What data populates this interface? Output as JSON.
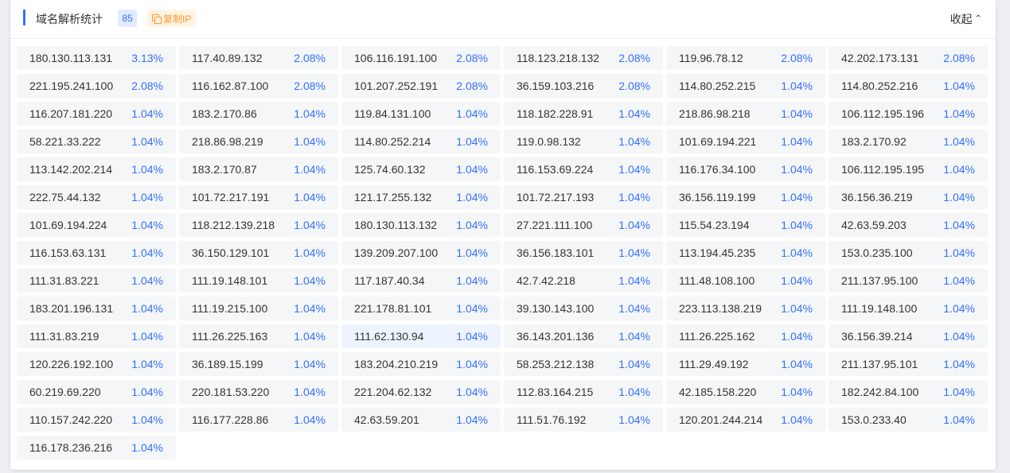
{
  "header": {
    "title": "域名解析统计",
    "count": "85",
    "copy_label": "复制IP",
    "collapse_label": "收起",
    "collapse_icon": "double-chevron-up"
  },
  "highlighted_index": 62,
  "ips": [
    {
      "ip": "180.130.113.131",
      "pct": "3.13%"
    },
    {
      "ip": "117.40.89.132",
      "pct": "2.08%"
    },
    {
      "ip": "106.116.191.100",
      "pct": "2.08%"
    },
    {
      "ip": "118.123.218.132",
      "pct": "2.08%"
    },
    {
      "ip": "119.96.78.12",
      "pct": "2.08%"
    },
    {
      "ip": "42.202.173.131",
      "pct": "2.08%"
    },
    {
      "ip": "221.195.241.100",
      "pct": "2.08%"
    },
    {
      "ip": "116.162.87.100",
      "pct": "2.08%"
    },
    {
      "ip": "101.207.252.191",
      "pct": "2.08%"
    },
    {
      "ip": "36.159.103.216",
      "pct": "2.08%"
    },
    {
      "ip": "114.80.252.215",
      "pct": "1.04%"
    },
    {
      "ip": "114.80.252.216",
      "pct": "1.04%"
    },
    {
      "ip": "116.207.181.220",
      "pct": "1.04%"
    },
    {
      "ip": "183.2.170.86",
      "pct": "1.04%"
    },
    {
      "ip": "119.84.131.100",
      "pct": "1.04%"
    },
    {
      "ip": "118.182.228.91",
      "pct": "1.04%"
    },
    {
      "ip": "218.86.98.218",
      "pct": "1.04%"
    },
    {
      "ip": "106.112.195.196",
      "pct": "1.04%"
    },
    {
      "ip": "58.221.33.222",
      "pct": "1.04%"
    },
    {
      "ip": "218.86.98.219",
      "pct": "1.04%"
    },
    {
      "ip": "114.80.252.214",
      "pct": "1.04%"
    },
    {
      "ip": "119.0.98.132",
      "pct": "1.04%"
    },
    {
      "ip": "101.69.194.221",
      "pct": "1.04%"
    },
    {
      "ip": "183.2.170.92",
      "pct": "1.04%"
    },
    {
      "ip": "113.142.202.214",
      "pct": "1.04%"
    },
    {
      "ip": "183.2.170.87",
      "pct": "1.04%"
    },
    {
      "ip": "125.74.60.132",
      "pct": "1.04%"
    },
    {
      "ip": "116.153.69.224",
      "pct": "1.04%"
    },
    {
      "ip": "116.176.34.100",
      "pct": "1.04%"
    },
    {
      "ip": "106.112.195.195",
      "pct": "1.04%"
    },
    {
      "ip": "222.75.44.132",
      "pct": "1.04%"
    },
    {
      "ip": "101.72.217.191",
      "pct": "1.04%"
    },
    {
      "ip": "121.17.255.132",
      "pct": "1.04%"
    },
    {
      "ip": "101.72.217.193",
      "pct": "1.04%"
    },
    {
      "ip": "36.156.119.199",
      "pct": "1.04%"
    },
    {
      "ip": "36.156.36.219",
      "pct": "1.04%"
    },
    {
      "ip": "101.69.194.224",
      "pct": "1.04%"
    },
    {
      "ip": "118.212.139.218",
      "pct": "1.04%"
    },
    {
      "ip": "180.130.113.132",
      "pct": "1.04%"
    },
    {
      "ip": "27.221.111.100",
      "pct": "1.04%"
    },
    {
      "ip": "115.54.23.194",
      "pct": "1.04%"
    },
    {
      "ip": "42.63.59.203",
      "pct": "1.04%"
    },
    {
      "ip": "116.153.63.131",
      "pct": "1.04%"
    },
    {
      "ip": "36.150.129.101",
      "pct": "1.04%"
    },
    {
      "ip": "139.209.207.100",
      "pct": "1.04%"
    },
    {
      "ip": "36.156.183.101",
      "pct": "1.04%"
    },
    {
      "ip": "113.194.45.235",
      "pct": "1.04%"
    },
    {
      "ip": "153.0.235.100",
      "pct": "1.04%"
    },
    {
      "ip": "111.31.83.221",
      "pct": "1.04%"
    },
    {
      "ip": "111.19.148.101",
      "pct": "1.04%"
    },
    {
      "ip": "117.187.40.34",
      "pct": "1.04%"
    },
    {
      "ip": "42.7.42.218",
      "pct": "1.04%"
    },
    {
      "ip": "111.48.108.100",
      "pct": "1.04%"
    },
    {
      "ip": "211.137.95.100",
      "pct": "1.04%"
    },
    {
      "ip": "183.201.196.131",
      "pct": "1.04%"
    },
    {
      "ip": "111.19.215.100",
      "pct": "1.04%"
    },
    {
      "ip": "221.178.81.101",
      "pct": "1.04%"
    },
    {
      "ip": "39.130.143.100",
      "pct": "1.04%"
    },
    {
      "ip": "223.113.138.219",
      "pct": "1.04%"
    },
    {
      "ip": "111.19.148.100",
      "pct": "1.04%"
    },
    {
      "ip": "111.31.83.219",
      "pct": "1.04%"
    },
    {
      "ip": "111.26.225.163",
      "pct": "1.04%"
    },
    {
      "ip": "111.62.130.94",
      "pct": "1.04%"
    },
    {
      "ip": "36.143.201.136",
      "pct": "1.04%"
    },
    {
      "ip": "111.26.225.162",
      "pct": "1.04%"
    },
    {
      "ip": "36.156.39.214",
      "pct": "1.04%"
    },
    {
      "ip": "120.226.192.100",
      "pct": "1.04%"
    },
    {
      "ip": "36.189.15.199",
      "pct": "1.04%"
    },
    {
      "ip": "183.204.210.219",
      "pct": "1.04%"
    },
    {
      "ip": "58.253.212.138",
      "pct": "1.04%"
    },
    {
      "ip": "111.29.49.192",
      "pct": "1.04%"
    },
    {
      "ip": "211.137.95.101",
      "pct": "1.04%"
    },
    {
      "ip": "60.219.69.220",
      "pct": "1.04%"
    },
    {
      "ip": "220.181.53.220",
      "pct": "1.04%"
    },
    {
      "ip": "221.204.62.132",
      "pct": "1.04%"
    },
    {
      "ip": "112.83.164.215",
      "pct": "1.04%"
    },
    {
      "ip": "42.185.158.220",
      "pct": "1.04%"
    },
    {
      "ip": "182.242.84.100",
      "pct": "1.04%"
    },
    {
      "ip": "110.157.242.220",
      "pct": "1.04%"
    },
    {
      "ip": "116.177.228.86",
      "pct": "1.04%"
    },
    {
      "ip": "42.63.59.201",
      "pct": "1.04%"
    },
    {
      "ip": "111.51.76.192",
      "pct": "1.04%"
    },
    {
      "ip": "120.201.244.214",
      "pct": "1.04%"
    },
    {
      "ip": "153.0.233.40",
      "pct": "1.04%"
    },
    {
      "ip": "116.178.236.216",
      "pct": "1.04%"
    }
  ]
}
